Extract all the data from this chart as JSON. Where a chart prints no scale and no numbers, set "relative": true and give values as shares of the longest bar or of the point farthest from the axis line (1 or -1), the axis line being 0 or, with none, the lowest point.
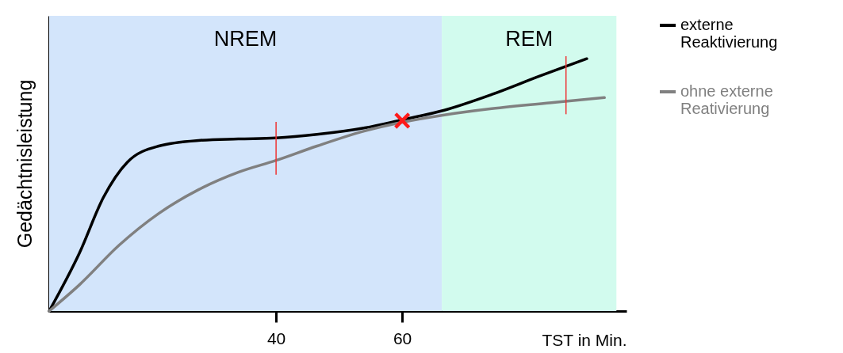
{
  "chart_data": {
    "type": "line",
    "relative": true,
    "xlabel": "TST in Min.",
    "ylabel": "Gedächtnisleistung",
    "xlim": [
      4,
      95.6
    ],
    "xticks": [
      40,
      60
    ],
    "tick_labels": "x",
    "legend": "right",
    "grid": false,
    "marker": "none",
    "line_style": "solid",
    "series": [
      {
        "name": "externe Reaktivierung",
        "color": "#000000",
        "x": [
          4,
          8.8,
          12.6,
          16.4,
          21.4,
          27.7,
          34,
          40,
          46.5,
          54.1,
          60,
          66.7,
          74.2,
          81.8,
          89.3
        ],
        "values": [
          0,
          0.23,
          0.45,
          0.59,
          0.654,
          0.676,
          0.682,
          0.686,
          0.7,
          0.726,
          0.758,
          0.796,
          0.858,
          0.931,
          1
        ]
      },
      {
        "name": "ohne externe Reativierung",
        "color": "#808080",
        "x": [
          4,
          8.8,
          15.1,
          21.4,
          27.7,
          34,
          40,
          46.5,
          54.1,
          60,
          66.7,
          74.2,
          84.3,
          92.1
        ],
        "values": [
          0,
          0.104,
          0.261,
          0.387,
          0.481,
          0.55,
          0.597,
          0.654,
          0.714,
          0.748,
          0.777,
          0.802,
          0.827,
          0.846
        ]
      }
    ],
    "bands": [
      {
        "axis": "x",
        "from": 4,
        "to": 66.3,
        "label": "NREM",
        "color": "#d3e5fb"
      },
      {
        "axis": "x",
        "from": 66.3,
        "to": 94,
        "label": "REM",
        "color": "#d2fbee"
      }
    ],
    "annotations": [
      {
        "text": "×",
        "x": 60,
        "y": 0.75
      }
    ]
  }
}
